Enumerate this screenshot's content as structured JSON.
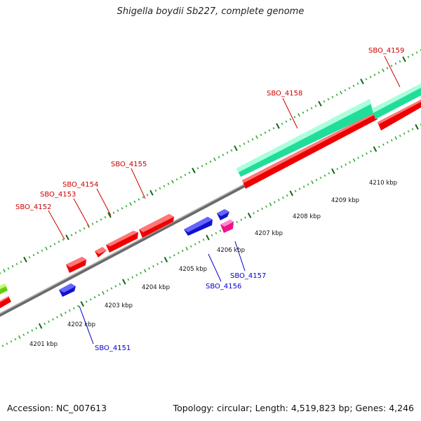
{
  "title": "Shigella boydii Sb227, complete genome",
  "footer": {
    "accession": "Accession: NC_007613",
    "summary": "Topology: circular; Length: 4,519,823 bp; Genes: 4,246"
  },
  "colors": {
    "forward_gene": "#ff0000",
    "reverse_gene": "#0000ff",
    "rRNA_gene": "#33ffaa",
    "other_gene": "#ff22aa",
    "partial_gene": "#88ee22",
    "tick_dark": "#116611",
    "tick_light": "#33aa33",
    "backbone": "#888888"
  },
  "scale_labels": [
    "4201 kbp",
    "4202 kbp",
    "4203 kbp",
    "4204 kbp",
    "4205 kbp",
    "4206 kbp",
    "4207 kbp",
    "4208 kbp",
    "4209 kbp",
    "4210 kbp"
  ],
  "gene_labels": {
    "forward": [
      "SBO_4152",
      "SBO_4153",
      "SBO_4154",
      "SBO_4155",
      "SBO_4158",
      "SBO_4159"
    ],
    "reverse": [
      "SBO_4151",
      "SBO_4156",
      "SBO_4157"
    ]
  }
}
